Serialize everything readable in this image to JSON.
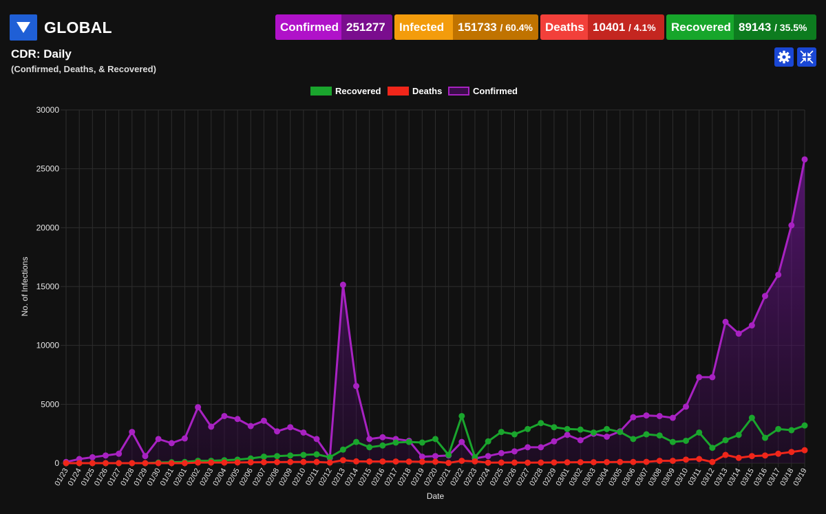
{
  "header": {
    "region": "GLOBAL",
    "stats": {
      "confirmed": {
        "label": "Confirmed",
        "value": "251277",
        "pct": ""
      },
      "infected": {
        "label": "Infected",
        "value": "151733",
        "pct": "/ 60.4%"
      },
      "deaths": {
        "label": "Deaths",
        "value": "10401",
        "pct": "/ 4.1%"
      },
      "recovered": {
        "label": "Recovered",
        "value": "89143",
        "pct": "/ 35.5%"
      }
    }
  },
  "chart_header": {
    "title": "CDR: Daily",
    "subtitle": "(Confirmed, Deaths, & Recovered)"
  },
  "icons": {
    "dropdown": "triangle-down-icon",
    "settings": "gear-icon",
    "collapse": "collapse-arrows-icon"
  },
  "chart_data": {
    "type": "line",
    "title": "",
    "xlabel": "Date",
    "ylabel": "No. of Infections",
    "ylim": [
      0,
      30000
    ],
    "yticks": [
      0,
      5000,
      10000,
      15000,
      20000,
      25000,
      30000
    ],
    "grid": true,
    "legend_position": "top-center",
    "categories": [
      "01/23",
      "01/24",
      "01/25",
      "01/26",
      "01/27",
      "01/28",
      "01/29",
      "01/30",
      "01/31",
      "02/01",
      "02/02",
      "02/03",
      "02/04",
      "02/05",
      "02/06",
      "02/07",
      "02/08",
      "02/09",
      "02/10",
      "02/11",
      "02/12",
      "02/13",
      "02/14",
      "02/15",
      "02/16",
      "02/17",
      "02/18",
      "02/19",
      "02/20",
      "02/21",
      "02/22",
      "02/23",
      "02/24",
      "02/25",
      "02/26",
      "02/27",
      "02/28",
      "02/29",
      "03/01",
      "03/02",
      "03/03",
      "03/04",
      "03/05",
      "03/06",
      "03/07",
      "03/08",
      "03/09",
      "03/10",
      "03/11",
      "03/12",
      "03/13",
      "03/14",
      "03/15",
      "03/16",
      "03/17",
      "03/18",
      "03/19"
    ],
    "series": [
      {
        "name": "Recovered",
        "color": "#1aa52d",
        "fill": false,
        "values": [
          0,
          0,
          0,
          0,
          0,
          0,
          0,
          50,
          80,
          100,
          200,
          200,
          250,
          300,
          400,
          550,
          600,
          650,
          700,
          750,
          500,
          1150,
          1800,
          1350,
          1500,
          1750,
          1800,
          1750,
          2050,
          700,
          4000,
          500,
          1850,
          2650,
          2450,
          2900,
          3400,
          3050,
          2900,
          2850,
          2600,
          2900,
          2650,
          2050,
          2450,
          2350,
          1800,
          1900,
          2600,
          1300,
          1950,
          2400,
          3850,
          2150,
          2900,
          2800,
          3200
        ]
      },
      {
        "name": "Deaths",
        "color": "#f0261a",
        "fill": false,
        "values": [
          0,
          0,
          0,
          0,
          0,
          0,
          0,
          0,
          0,
          0,
          50,
          50,
          50,
          60,
          70,
          80,
          90,
          100,
          100,
          100,
          50,
          250,
          150,
          140,
          140,
          140,
          130,
          120,
          120,
          20,
          200,
          150,
          40,
          50,
          50,
          40,
          50,
          60,
          70,
          80,
          80,
          90,
          100,
          100,
          110,
          200,
          200,
          300,
          350,
          100,
          700,
          450,
          600,
          650,
          800,
          950,
          1100
        ]
      },
      {
        "name": "Confirmed",
        "color": "#a822c2",
        "fill": true,
        "values": [
          100,
          350,
          500,
          650,
          800,
          2650,
          600,
          2050,
          1700,
          2100,
          4750,
          3100,
          4000,
          3750,
          3150,
          3600,
          2700,
          3050,
          2600,
          2050,
          450,
          15150,
          6550,
          2050,
          2200,
          2050,
          1900,
          550,
          600,
          650,
          1800,
          400,
          600,
          850,
          1000,
          1350,
          1350,
          1850,
          2400,
          1950,
          2500,
          2250,
          2700,
          3900,
          4050,
          4000,
          3850,
          4800,
          7300,
          7300,
          12000,
          11000,
          11700,
          14200,
          16000,
          20200,
          25800
        ]
      }
    ]
  }
}
